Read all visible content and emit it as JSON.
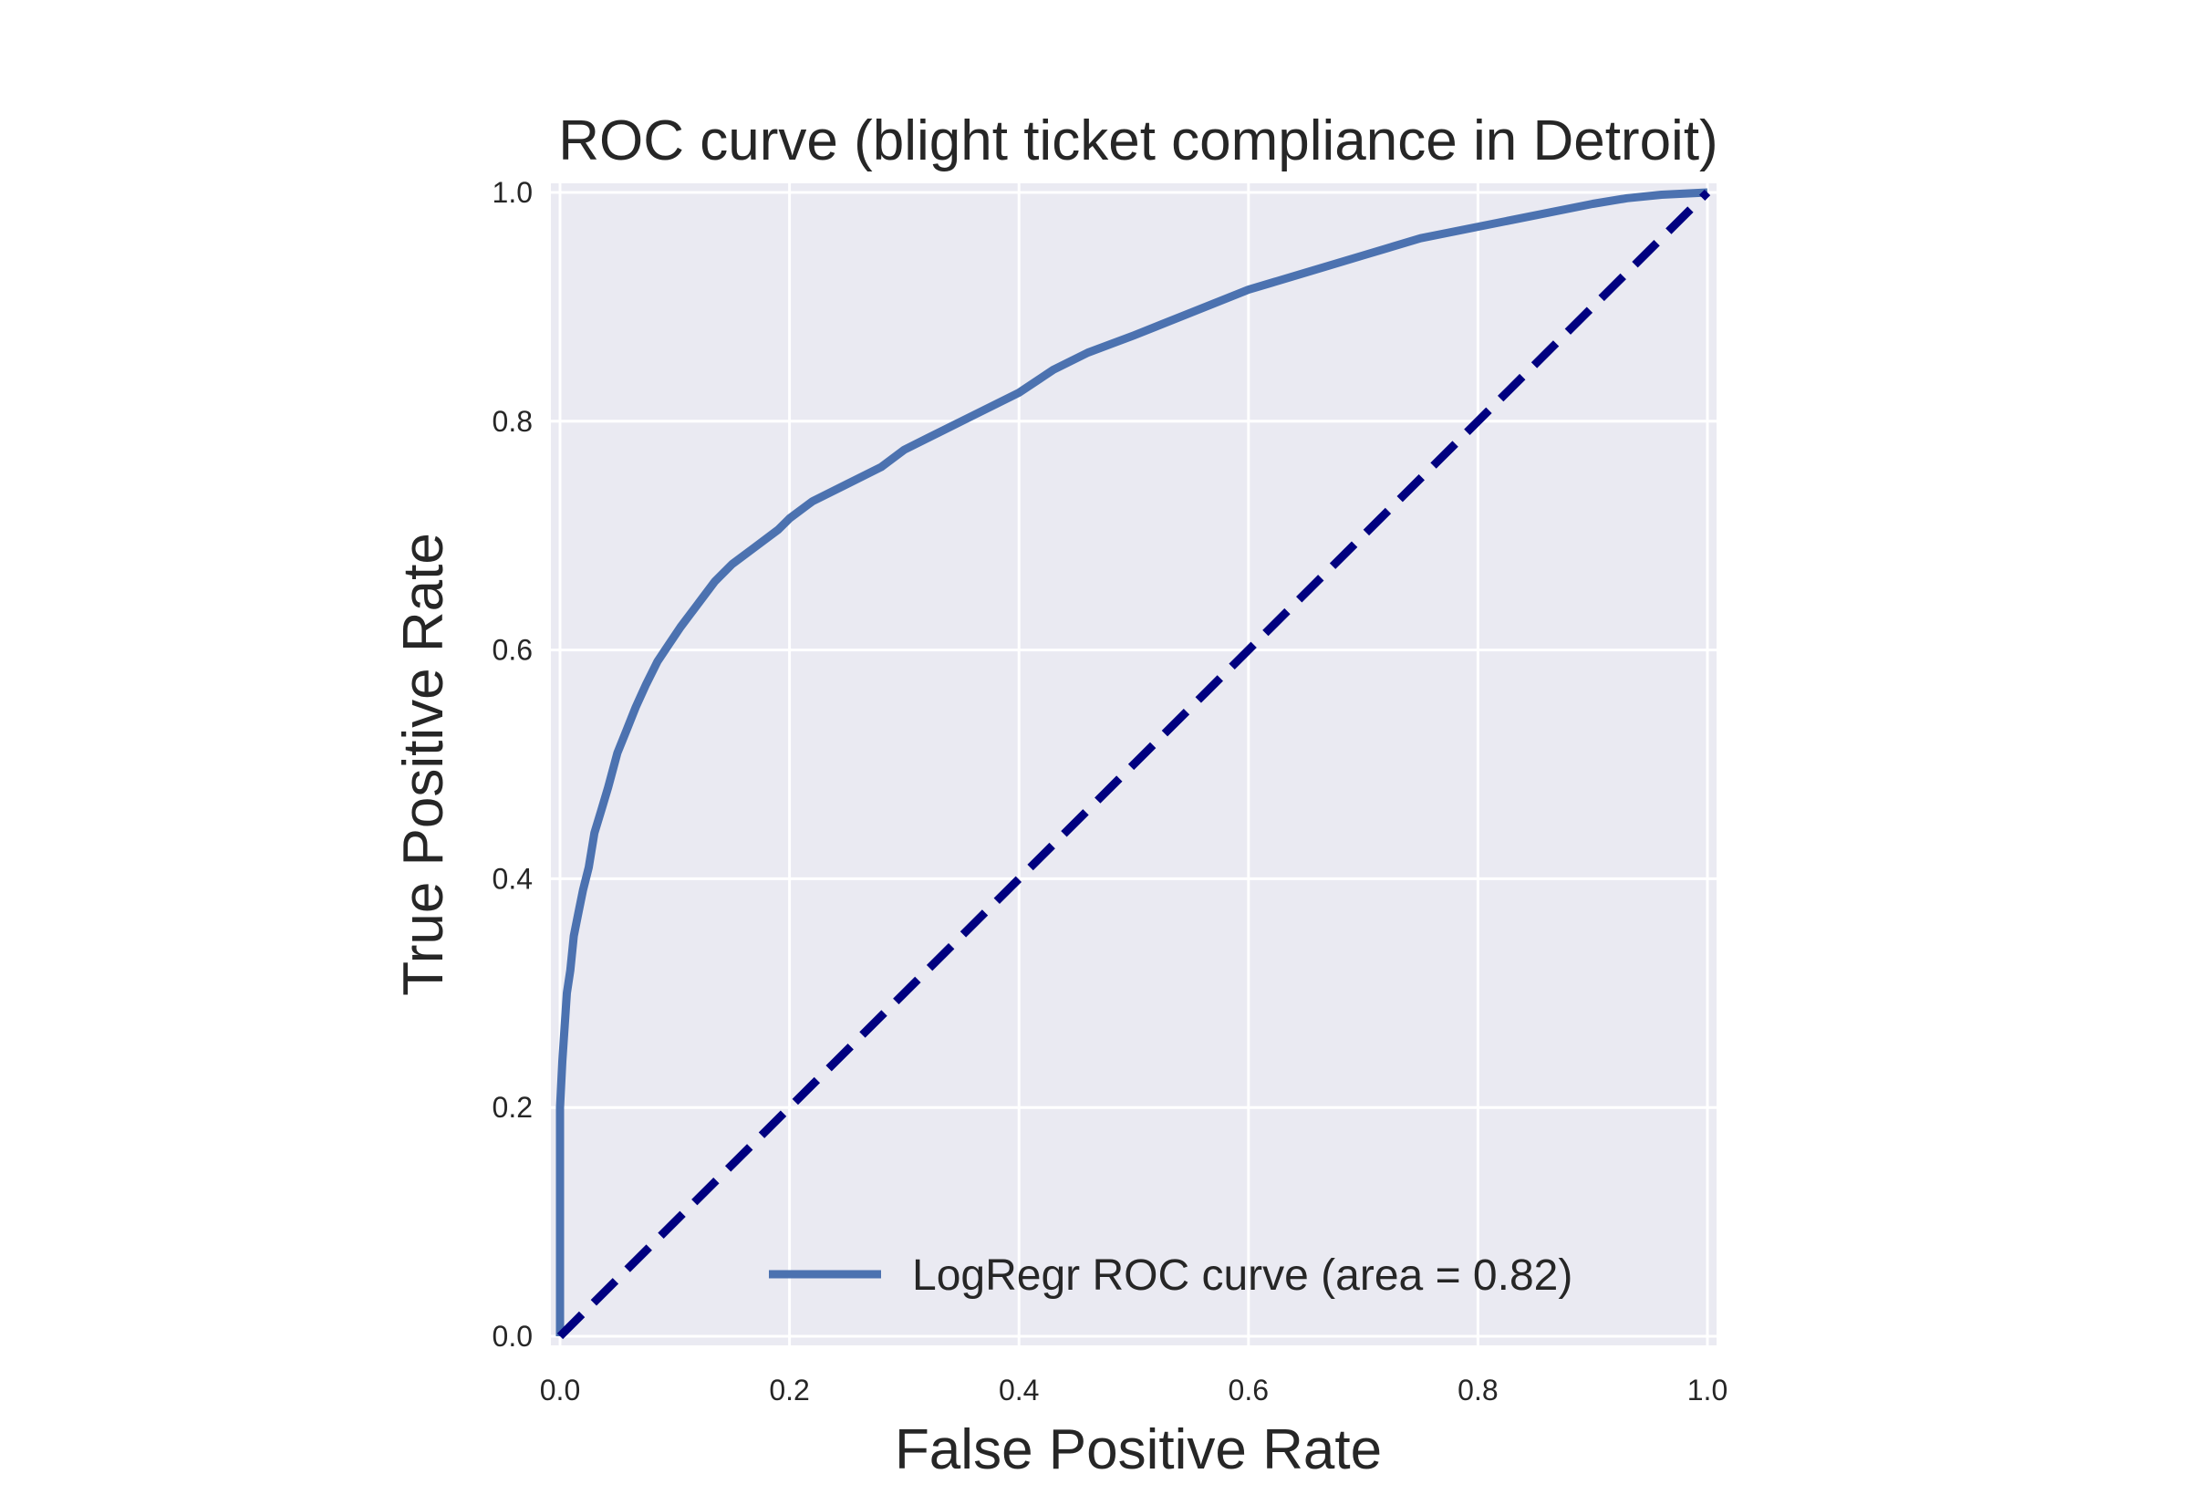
{
  "chart_data": {
    "type": "line",
    "title": "ROC curve (blight ticket compliance in Detroit)",
    "xlabel": "False Positive Rate",
    "ylabel": "True Positive Rate",
    "xlim": [
      0.0,
      1.0
    ],
    "ylim": [
      0.0,
      1.0
    ],
    "xticks": [
      "0.0",
      "0.2",
      "0.4",
      "0.6",
      "0.8",
      "1.0"
    ],
    "yticks": [
      "0.0",
      "0.2",
      "0.4",
      "0.6",
      "0.8",
      "1.0"
    ],
    "grid": true,
    "legend_position": "lower-right",
    "series": [
      {
        "name": "LogRegr ROC curve (area = 0.82)",
        "color": "#4c72b0",
        "style": "solid",
        "x": [
          0.0,
          0.0,
          0.002,
          0.004,
          0.006,
          0.009,
          0.012,
          0.016,
          0.02,
          0.025,
          0.03,
          0.036,
          0.042,
          0.05,
          0.058,
          0.066,
          0.075,
          0.085,
          0.095,
          0.105,
          0.12,
          0.135,
          0.15,
          0.17,
          0.19,
          0.2,
          0.22,
          0.25,
          0.28,
          0.3,
          0.33,
          0.36,
          0.4,
          0.43,
          0.46,
          0.5,
          0.55,
          0.6,
          0.65,
          0.7,
          0.75,
          0.8,
          0.85,
          0.9,
          0.93,
          0.96,
          1.0
        ],
        "y": [
          0.0,
          0.2,
          0.24,
          0.27,
          0.3,
          0.32,
          0.35,
          0.37,
          0.39,
          0.41,
          0.44,
          0.46,
          0.48,
          0.51,
          0.53,
          0.55,
          0.57,
          0.59,
          0.605,
          0.62,
          0.64,
          0.66,
          0.675,
          0.69,
          0.705,
          0.715,
          0.73,
          0.745,
          0.76,
          0.775,
          0.79,
          0.805,
          0.825,
          0.845,
          0.86,
          0.875,
          0.895,
          0.915,
          0.93,
          0.945,
          0.96,
          0.97,
          0.98,
          0.99,
          0.995,
          0.998,
          1.0
        ]
      },
      {
        "name": "",
        "color": "#000080",
        "style": "dashed",
        "x": [
          0.0,
          1.0
        ],
        "y": [
          0.0,
          1.0
        ]
      }
    ]
  }
}
